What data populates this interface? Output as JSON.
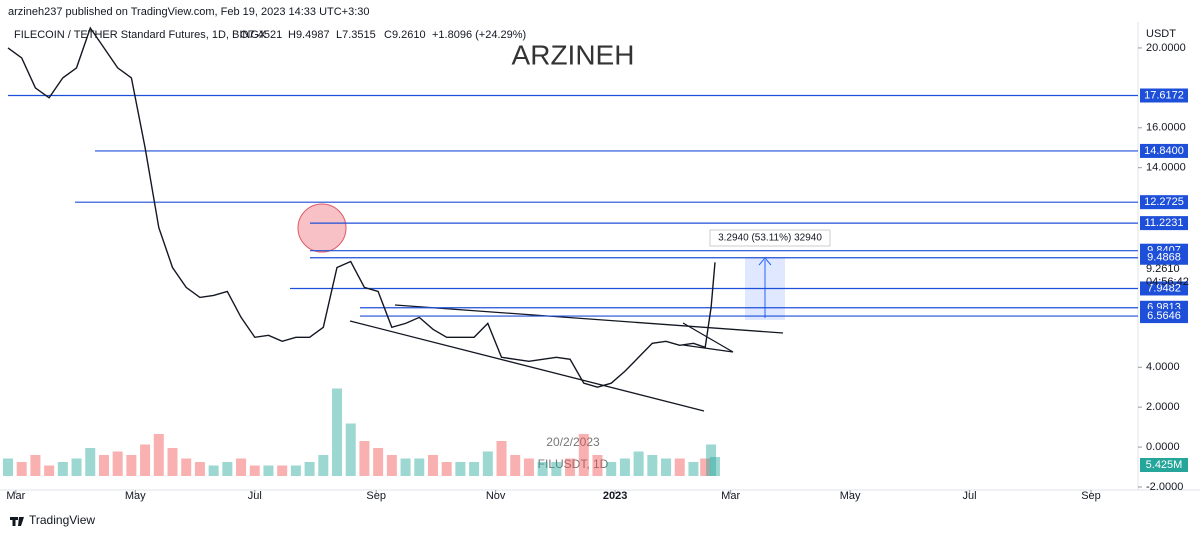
{
  "header": {
    "published": "arzineh237 published on TradingView.com, Feb 19, 2023 14:33 UTC+3:30",
    "symbol": "FILECOIN / TETHER Standard Futures, 1D, BINGX",
    "open": "O7.4521",
    "high": "H9.4987",
    "low": "L7.3515",
    "close": "C9.2610",
    "change": "+1.8096 (+24.29%)"
  },
  "watermark": "ARZINEH",
  "footer": "TradingView",
  "chart_data": {
    "type": "line",
    "x": [
      -4,
      3,
      10,
      17,
      24,
      31,
      38,
      45,
      52,
      59,
      66,
      73,
      80,
      87,
      94,
      101,
      108,
      115,
      122,
      129,
      136,
      143,
      150,
      157,
      164,
      171,
      178,
      185,
      192,
      199,
      206,
      213,
      220,
      227,
      234,
      241,
      248,
      255,
      262,
      269,
      276,
      283,
      290,
      297,
      304,
      311,
      318,
      325,
      332,
      339,
      346,
      352,
      355,
      357
    ],
    "series": [
      {
        "name": "FILUSDT",
        "color": "#131722",
        "values": [
          20,
          19.5,
          18,
          17.5,
          18.5,
          19,
          21,
          20,
          19,
          18.5,
          15,
          11,
          9,
          8,
          7.5,
          7.6,
          7.8,
          6.5,
          5.5,
          5.6,
          5.3,
          5.5,
          5.5,
          6.0,
          9,
          9.3,
          8,
          7.8,
          6.0,
          6.2,
          6.5,
          5.9,
          5.5,
          5.5,
          5.5,
          6.2,
          4.5,
          4.4,
          4.3,
          4.4,
          4.5,
          4.4,
          3.2,
          3.0,
          3.2,
          3.8,
          4.5,
          5.2,
          5.3,
          5.1,
          5.2,
          5.0,
          7.0,
          9.261
        ]
      },
      {
        "name": "Volume",
        "color": "#26a69a",
        "values": [
          5,
          4,
          6,
          3,
          4,
          5,
          8,
          6,
          7,
          6,
          9,
          12,
          8,
          5,
          4,
          3,
          4,
          5,
          3,
          3,
          3,
          3,
          4,
          6,
          25,
          15,
          10,
          8,
          6,
          5,
          5,
          6,
          4,
          4,
          4,
          7,
          10,
          6,
          5,
          4,
          4,
          5,
          12,
          6,
          4,
          5,
          7,
          6,
          5,
          5,
          4,
          5,
          9,
          5.425
        ]
      }
    ],
    "volume_label": "5.425M",
    "price_label": "9.2610",
    "countdown": "04:56:42",
    "y_unit": "USDT",
    "ylim": [
      -2.15,
      21.3
    ],
    "yticks": [
      {
        "value": 20,
        "label": "20.0000"
      },
      {
        "value": 16,
        "label": "16.0000"
      },
      {
        "value": 14,
        "label": "14.0000"
      },
      {
        "value": 4,
        "label": "4.0000"
      },
      {
        "value": 2,
        "label": "2.0000"
      },
      {
        "value": 0,
        "label": "0.0000"
      },
      {
        "value": -2,
        "label": "-2.0000"
      }
    ],
    "xlim": [
      -4,
      573
    ],
    "xticks": [
      {
        "value": 0,
        "label": "Mar"
      },
      {
        "value": 61,
        "label": "May"
      },
      {
        "value": 122,
        "label": "Jul"
      },
      {
        "value": 184,
        "label": "Sep"
      },
      {
        "value": 245,
        "label": "Nov"
      },
      {
        "value": 306,
        "label": "2023"
      },
      {
        "value": 365,
        "label": "Mar"
      },
      {
        "value": 426,
        "label": "May"
      },
      {
        "value": 487,
        "label": "Jul"
      },
      {
        "value": 549,
        "label": "Sep"
      }
    ],
    "levels": [
      {
        "value": 17.6172,
        "label": "17.6172"
      },
      {
        "value": 14.84,
        "label": "14.8400"
      },
      {
        "value": 12.2725,
        "label": "12.2725"
      },
      {
        "value": 11.2231,
        "label": "11.2231"
      },
      {
        "value": 9.8407,
        "label": "9.8407"
      },
      {
        "value": 9.4868,
        "label": "9.4868"
      },
      {
        "value": 7.9482,
        "label": "7.9482"
      },
      {
        "value": 6.9813,
        "label": "6.9813"
      },
      {
        "value": 6.5646,
        "label": "6.5646"
      }
    ],
    "level_color": "#1e4fd8",
    "annotations": {
      "measure": "3.2940 (53.11%) 32940",
      "date": "20/2/2023",
      "symbol": "FILUSDT, 1D"
    }
  }
}
